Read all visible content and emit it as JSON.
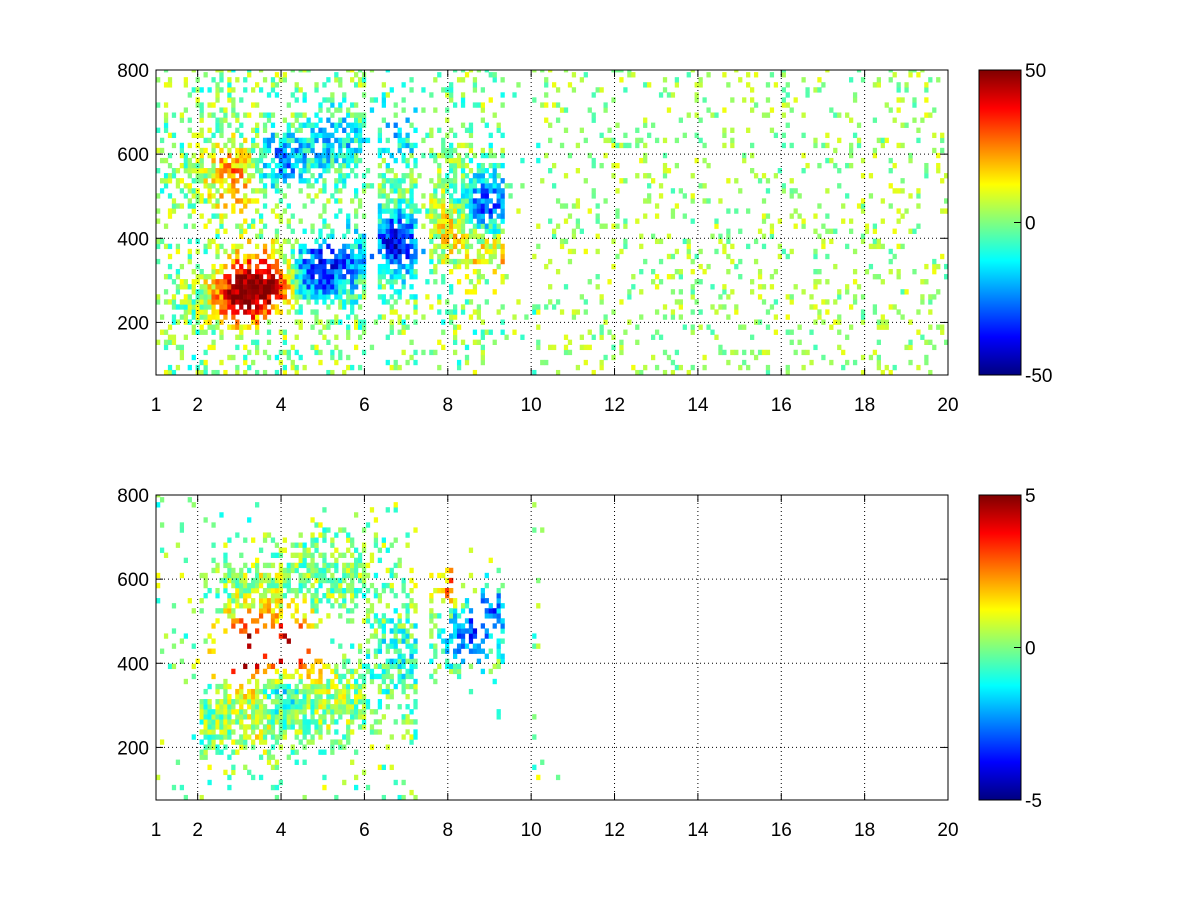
{
  "chart_data": [
    {
      "type": "heatmap",
      "title": "",
      "xlabel": "",
      "ylabel": "",
      "xlim": [
        1,
        20
      ],
      "ylim": [
        75,
        800
      ],
      "x_ticks": [
        "1",
        "2",
        "4",
        "6",
        "8",
        "10",
        "12",
        "14",
        "16",
        "18",
        "20"
      ],
      "y_ticks": [
        "200",
        "400",
        "600",
        "800"
      ],
      "grid": true,
      "colormap": "jet",
      "color_limits": [
        -50,
        50
      ],
      "colorbar_ticks": [
        "50",
        "0",
        "-50"
      ],
      "features": [
        {
          "x": 3.0,
          "y": 270,
          "value": 45
        },
        {
          "x": 3.8,
          "y": 300,
          "value": 42
        },
        {
          "x": 4.6,
          "y": 320,
          "value": -30
        },
        {
          "x": 5.4,
          "y": 340,
          "value": -25
        },
        {
          "x": 2.9,
          "y": 550,
          "value": 25
        },
        {
          "x": 4.0,
          "y": 580,
          "value": -25
        },
        {
          "x": 5.3,
          "y": 640,
          "value": -20
        },
        {
          "x": 6.8,
          "y": 390,
          "value": -40
        },
        {
          "x": 6.8,
          "y": 650,
          "value": -15
        },
        {
          "x": 8.0,
          "y": 420,
          "value": 15
        },
        {
          "x": 9.0,
          "y": 470,
          "value": -35
        },
        {
          "x": 9.1,
          "y": 380,
          "value": 20
        },
        {
          "x": 10.2,
          "y": 480,
          "value": 10
        }
      ]
    },
    {
      "type": "heatmap",
      "title": "",
      "xlabel": "",
      "ylabel": "",
      "xlim": [
        1,
        20
      ],
      "ylim": [
        75,
        800
      ],
      "x_ticks": [
        "1",
        "2",
        "4",
        "6",
        "8",
        "10",
        "12",
        "14",
        "16",
        "18",
        "20"
      ],
      "y_ticks": [
        "200",
        "400",
        "600",
        "800"
      ],
      "grid": true,
      "colormap": "jet",
      "color_limits": [
        -5,
        5
      ],
      "colorbar_ticks": [
        "5",
        "0",
        "-5"
      ],
      "features": [
        {
          "x": 3.2,
          "y": 430,
          "value": 5
        },
        {
          "x": 4.2,
          "y": 430,
          "value": 5
        },
        {
          "x": 4.0,
          "y": 350,
          "value": -2.5
        },
        {
          "x": 3.5,
          "y": 270,
          "value": 1
        },
        {
          "x": 5.0,
          "y": 310,
          "value": 0.5
        },
        {
          "x": 3.5,
          "y": 580,
          "value": 0.5
        },
        {
          "x": 6.8,
          "y": 420,
          "value": -1
        },
        {
          "x": 8.3,
          "y": 480,
          "value": -3
        },
        {
          "x": 9.0,
          "y": 530,
          "value": -2.5
        },
        {
          "x": 8.1,
          "y": 570,
          "value": 3
        }
      ]
    }
  ]
}
